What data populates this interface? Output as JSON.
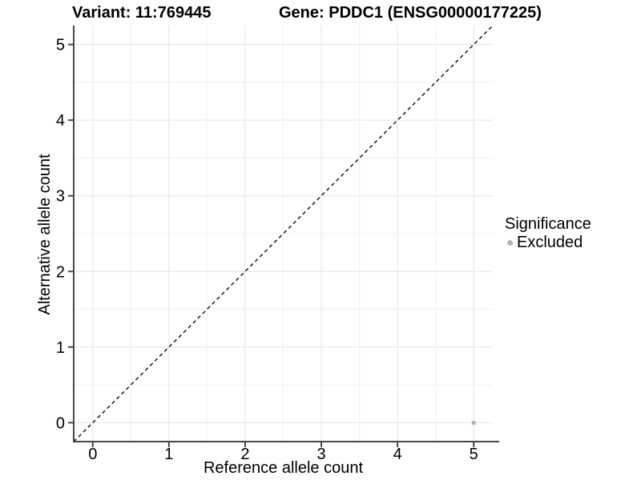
{
  "titles": {
    "variant": "Variant: 11:769445",
    "gene": "Gene: PDDC1 (ENSG00000177225)"
  },
  "legend": {
    "title": "Significance",
    "items": [
      {
        "label": "Excluded",
        "color": "#b3b3b3",
        "marker": "circle"
      }
    ]
  },
  "colors": {
    "background": "#ffffff",
    "grid_major": "#e4e4e4",
    "grid_minor": "#f0f0f0",
    "axis_line": "#474747",
    "tick_mark": "#474747",
    "text": "#000000",
    "identity_line": "#0a0a0a",
    "excluded_point": "#b3b3b3"
  },
  "chart_data": {
    "type": "scatter",
    "title": "Variant: 11:769445 | Gene: PDDC1 (ENSG00000177225)",
    "xlabel": "Reference allele count",
    "ylabel": "Alternative allele count",
    "xlim": [
      -0.25,
      5.25
    ],
    "ylim": [
      -0.25,
      5.25
    ],
    "x_ticks": [
      0,
      1,
      2,
      3,
      4,
      5
    ],
    "y_ticks": [
      0,
      1,
      2,
      3,
      4,
      5
    ],
    "grid": {
      "major": true,
      "minor": true,
      "minor_at": [
        0.5,
        1.5,
        2.5,
        3.5,
        4.5
      ]
    },
    "legend_position": "right",
    "series": [
      {
        "name": "Excluded",
        "color": "#b3b3b3",
        "points": [
          {
            "x": 5,
            "y": 0
          }
        ]
      }
    ],
    "reference_line": {
      "type": "identity",
      "slope": 1,
      "intercept": 0,
      "style": "dashed",
      "color": "#0a0a0a"
    }
  }
}
